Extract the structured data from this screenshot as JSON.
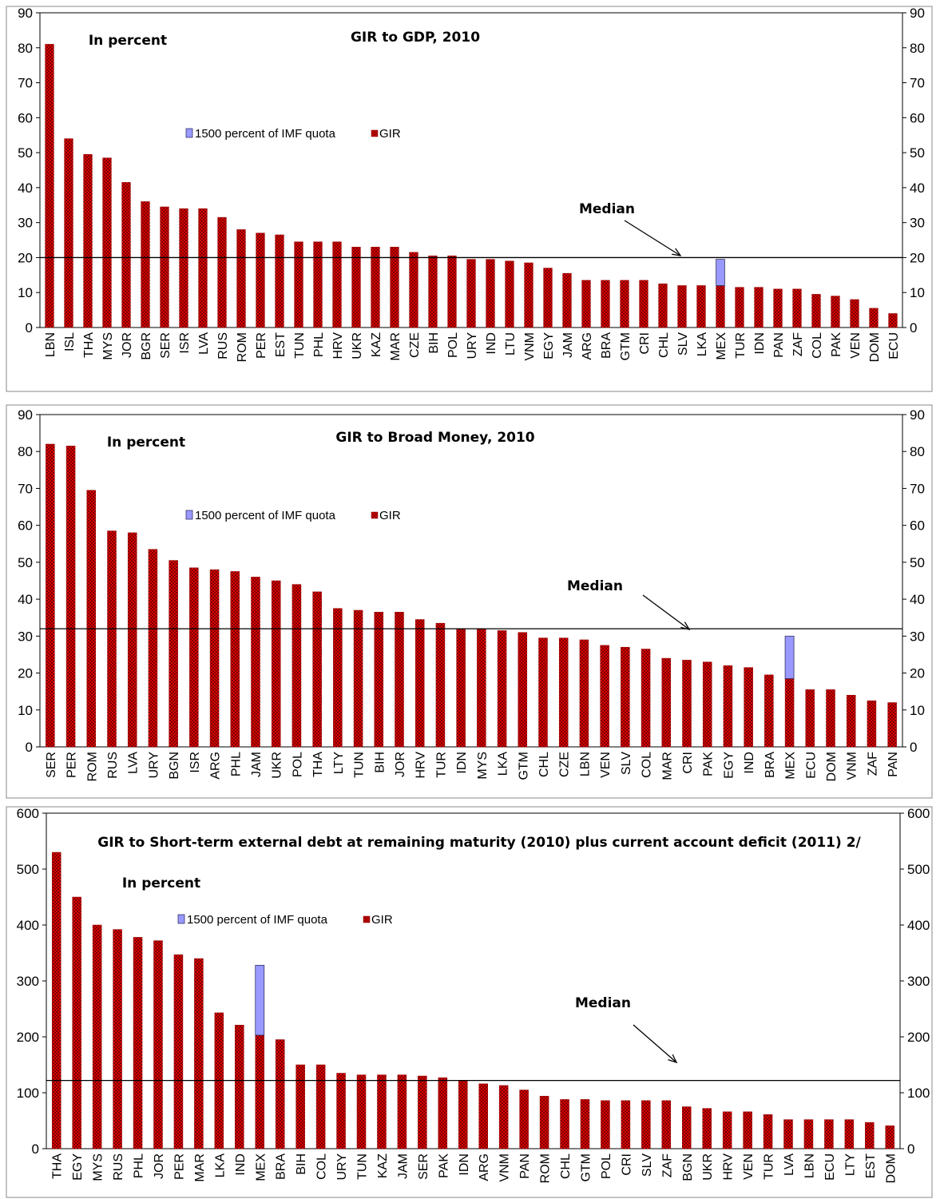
{
  "chart_data": [
    {
      "type": "bar",
      "title": "GIR to GDP, 2010",
      "subtitle": "In percent",
      "annotation": "Median",
      "median": 20,
      "ylim": [
        0,
        90
      ],
      "yticks": [
        0,
        10,
        20,
        30,
        40,
        50,
        60,
        70,
        80,
        90
      ],
      "legend": [
        "1500 percent of IMF quota",
        "GIR"
      ],
      "categories": [
        "LBN",
        "ISL",
        "THA",
        "MYS",
        "JOR",
        "BGR",
        "SER",
        "ISR",
        "LVA",
        "RUS",
        "ROM",
        "PER",
        "EST",
        "TUN",
        "PHL",
        "HRV",
        "UKR",
        "KAZ",
        "MAR",
        "CZE",
        "BIH",
        "POL",
        "URY",
        "IND",
        "LTU",
        "VNM",
        "EGY",
        "JAM",
        "ARG",
        "BRA",
        "GTM",
        "CRI",
        "CHL",
        "SLV",
        "LKA",
        "MEX",
        "TUR",
        "IDN",
        "PAN",
        "ZAF",
        "COL",
        "PAK",
        "VEN",
        "DOM",
        "ECU"
      ],
      "series": [
        {
          "name": "GIR",
          "color": "#cc0000",
          "values": [
            81,
            54,
            49.5,
            48.5,
            41.5,
            36,
            34.5,
            34,
            34,
            31.5,
            28,
            27,
            26.5,
            24.5,
            24.5,
            24.5,
            23,
            23,
            23,
            21.5,
            20.5,
            20.5,
            19.5,
            19.5,
            19,
            18.5,
            17,
            15.5,
            13.5,
            13.5,
            13.5,
            13.5,
            12.5,
            12,
            12,
            12,
            11.5,
            11.5,
            11,
            11,
            9.5,
            9,
            8,
            5.5,
            4
          ]
        },
        {
          "name": "1500 percent of IMF quota",
          "color": "#9999ff",
          "values": [
            0,
            0,
            0,
            0,
            0,
            0,
            0,
            0,
            0,
            0,
            0,
            0,
            0,
            0,
            0,
            0,
            0,
            0,
            0,
            0,
            0,
            0,
            0,
            0,
            0,
            0,
            0,
            0,
            0,
            0,
            0,
            0,
            0,
            0,
            0,
            7.5,
            0,
            0,
            0,
            0,
            0,
            0,
            0,
            0,
            0
          ]
        }
      ]
    },
    {
      "type": "bar",
      "title": "GIR to Broad Money, 2010",
      "subtitle": "In percent",
      "annotation": "Median",
      "median": 32,
      "ylim": [
        0,
        90
      ],
      "yticks": [
        0,
        10,
        20,
        30,
        40,
        50,
        60,
        70,
        80,
        90
      ],
      "legend": [
        "1500 percent of IMF quota",
        "GIR"
      ],
      "categories": [
        "SER",
        "PER",
        "ROM",
        "RUS",
        "LVA",
        "URY",
        "BGN",
        "ISR",
        "ARG",
        "PHL",
        "JAM",
        "UKR",
        "POL",
        "THA",
        "LTY",
        "TUN",
        "BIH",
        "JOR",
        "HRV",
        "TUR",
        "IDN",
        "MYS",
        "LKA",
        "GTM",
        "CHL",
        "CZE",
        "LBN",
        "VEN",
        "SLV",
        "COL",
        "MAR",
        "CRI",
        "PAK",
        "EGY",
        "IND",
        "BRA",
        "MEX",
        "ECU",
        "DOM",
        "VNM",
        "ZAF",
        "PAN"
      ],
      "series": [
        {
          "name": "GIR",
          "color": "#cc0000",
          "values": [
            82,
            81.5,
            69.5,
            58.5,
            58,
            53.5,
            50.5,
            48.5,
            48,
            47.5,
            46,
            45,
            44,
            42,
            37.5,
            37,
            36.5,
            36.5,
            34.5,
            33.5,
            32,
            32,
            31.5,
            31,
            29.5,
            29.5,
            29,
            27.5,
            27,
            26.5,
            24,
            23.5,
            23,
            22,
            21.5,
            19.5,
            18.5,
            15.5,
            15.5,
            14,
            12.5,
            12
          ]
        },
        {
          "name": "1500 percent of IMF quota",
          "color": "#9999ff",
          "values": [
            0,
            0,
            0,
            0,
            0,
            0,
            0,
            0,
            0,
            0,
            0,
            0,
            0,
            0,
            0,
            0,
            0,
            0,
            0,
            0,
            0,
            0,
            0,
            0,
            0,
            0,
            0,
            0,
            0,
            0,
            0,
            0,
            0,
            0,
            0,
            0,
            11.5,
            0,
            0,
            0,
            0,
            0
          ]
        }
      ]
    },
    {
      "type": "bar",
      "title": "GIR to Short-term external debt at remaining maturity (2010) plus current account deficit (2011) 2/",
      "subtitle": "In percent",
      "annotation": "Median",
      "median": 122,
      "ylim": [
        0,
        600
      ],
      "yticks": [
        0,
        100,
        200,
        300,
        400,
        500,
        600
      ],
      "legend": [
        "1500 percent of IMF quota",
        "GIR"
      ],
      "categories": [
        "THA",
        "EGY",
        "MYS",
        "RUS",
        "PHL",
        "JOR",
        "PER",
        "MAR",
        "LKA",
        "IND",
        "MEX",
        "BRA",
        "BIH",
        "COL",
        "URY",
        "TUN",
        "KAZ",
        "JAM",
        "SER",
        "PAK",
        "IDN",
        "ARG",
        "VNM",
        "PAN",
        "ROM",
        "CHL",
        "GTM",
        "POL",
        "CRI",
        "SLV",
        "ZAF",
        "BGN",
        "UKR",
        "HRV",
        "VEN",
        "TUR",
        "LVA",
        "LBN",
        "ECU",
        "LTY",
        "EST",
        "DOM"
      ],
      "series": [
        {
          "name": "GIR",
          "color": "#cc0000",
          "values": [
            530,
            450,
            400,
            392,
            378,
            372,
            347,
            340,
            243,
            221,
            203,
            195,
            150,
            150,
            135,
            132,
            132,
            132,
            130,
            127,
            122,
            116,
            113,
            105,
            94,
            88,
            88,
            86,
            86,
            86,
            86,
            75,
            72,
            66,
            66,
            61,
            52,
            52,
            52,
            52,
            47,
            41
          ]
        },
        {
          "name": "1500 percent of IMF quota",
          "color": "#9999ff",
          "values": [
            0,
            0,
            0,
            0,
            0,
            0,
            0,
            0,
            0,
            0,
            125,
            0,
            0,
            0,
            0,
            0,
            0,
            0,
            0,
            0,
            0,
            0,
            0,
            0,
            0,
            0,
            0,
            0,
            0,
            0,
            0,
            0,
            0,
            0,
            0,
            0,
            0,
            0,
            0,
            0,
            0,
            0
          ]
        }
      ]
    }
  ]
}
